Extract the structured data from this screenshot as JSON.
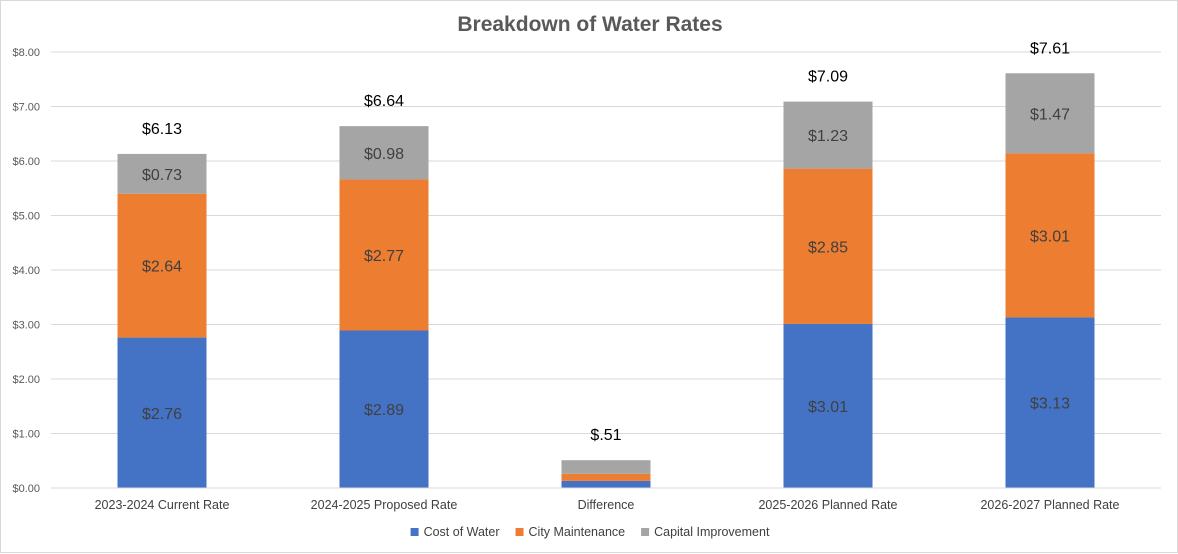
{
  "chart_data": {
    "type": "bar",
    "stacked": true,
    "title": "Breakdown of Water Rates",
    "xlabel": "",
    "ylabel": "",
    "ylim": [
      0,
      8
    ],
    "y_ticks": [
      "$0.00",
      "$1.00",
      "$2.00",
      "$3.00",
      "$4.00",
      "$5.00",
      "$6.00",
      "$7.00",
      "$8.00"
    ],
    "y_tick_values": [
      0,
      1,
      2,
      3,
      4,
      5,
      6,
      7,
      8
    ],
    "grid": true,
    "legend_position": "bottom",
    "categories": [
      "2023-2024 Current Rate",
      "2024-2025 Proposed Rate",
      "Difference",
      "2025-2026 Planned Rate",
      "2026-2027 Planned Rate"
    ],
    "series": [
      {
        "name": "Cost of Water",
        "color": "#4472c4",
        "values": [
          2.76,
          2.89,
          0.13,
          3.01,
          3.13
        ],
        "labels": [
          "$2.76",
          "$2.89",
          "",
          "$3.01",
          "$3.13"
        ]
      },
      {
        "name": "City Maintenance",
        "color": "#ed7d31",
        "values": [
          2.64,
          2.77,
          0.13,
          2.85,
          3.01
        ],
        "labels": [
          "$2.64",
          "$2.77",
          "",
          "$2.85",
          "$3.01"
        ]
      },
      {
        "name": "Capital Improvement",
        "color": "#a5a5a5",
        "values": [
          0.73,
          0.98,
          0.25,
          1.23,
          1.47
        ],
        "labels": [
          "$0.73",
          "$0.98",
          "",
          "$1.23",
          "$1.47"
        ]
      }
    ],
    "totals": [
      6.13,
      6.64,
      0.51,
      7.09,
      7.61
    ],
    "total_labels": [
      "$6.13",
      "$6.64",
      "$.51",
      "$7.09",
      "$7.61"
    ]
  }
}
